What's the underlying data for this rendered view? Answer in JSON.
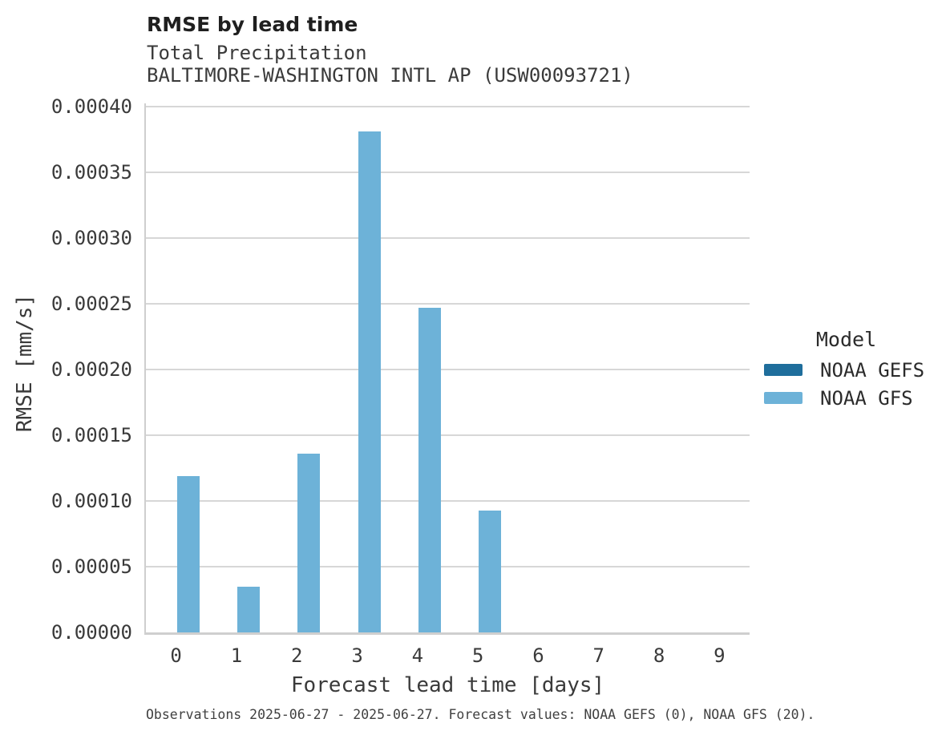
{
  "header": {
    "title": "RMSE by lead time",
    "subtitle_variable": "Total Precipitation",
    "subtitle_station": "BALTIMORE-WASHINGTON INTL AP (USW00093721)"
  },
  "legend": {
    "title": "Model",
    "items": [
      {
        "label": "NOAA GEFS",
        "color": "#1f6e9c"
      },
      {
        "label": "NOAA GFS",
        "color": "#6db2d8"
      }
    ]
  },
  "caption": "Observations 2025-06-27 - 2025-06-27. Forecast values: NOAA GEFS (0), NOAA GFS (20).",
  "chart_data": {
    "type": "bar",
    "title": "RMSE by lead time",
    "subtitles": [
      "Total Precipitation",
      "BALTIMORE-WASHINGTON INTL AP (USW00093721)"
    ],
    "xlabel": "Forecast lead time [days]",
    "ylabel": "RMSE [mm/s]",
    "categories": [
      "0",
      "1",
      "2",
      "3",
      "4",
      "5",
      "6",
      "7",
      "8",
      "9"
    ],
    "series": [
      {
        "name": "NOAA GEFS",
        "color": "#1f6e9c",
        "values": [
          null,
          null,
          null,
          null,
          null,
          null,
          null,
          null,
          null,
          null
        ]
      },
      {
        "name": "NOAA GFS",
        "color": "#6db2d8",
        "values": [
          0.000119,
          3.46e-05,
          0.000136,
          0.000381,
          0.000247,
          9.26e-05,
          null,
          null,
          null,
          null
        ]
      }
    ],
    "ylim": [
      0,
      0.0004
    ],
    "ytick_step": 5e-05,
    "ytick_labels": [
      "0.00000",
      "0.00005",
      "0.00010",
      "0.00015",
      "0.00020",
      "0.00025",
      "0.00030",
      "0.00035",
      "0.00040"
    ],
    "grid": true,
    "legend_position": "right",
    "legend_title": "Model"
  }
}
